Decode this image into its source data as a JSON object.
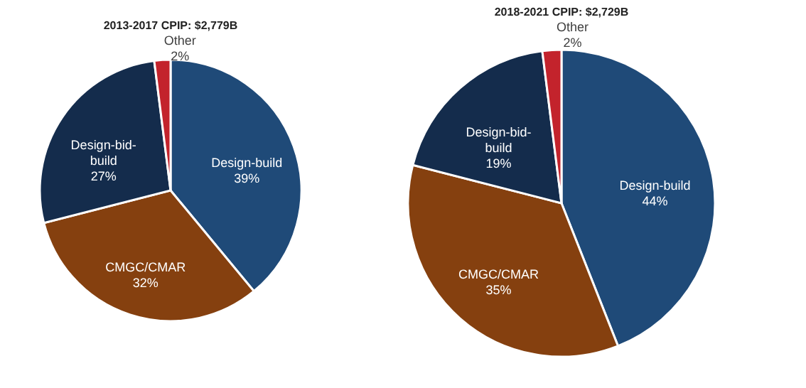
{
  "chart_data": [
    {
      "type": "pie",
      "title": "2013-2017 CPIP: $2,779B",
      "categories": [
        "Design-build",
        "CMGC/CMAR",
        "Design-bid-build",
        "Other"
      ],
      "values": [
        39,
        32,
        27,
        2
      ],
      "colors": [
        "#1f4a78",
        "#85400f",
        "#142c4c",
        "#c3232c"
      ],
      "value_labels": [
        "39%",
        "32%",
        "27%",
        "2%"
      ]
    },
    {
      "type": "pie",
      "title": "2018-2021 CPIP: $2,729B",
      "categories": [
        "Design-build",
        "CMGC/CMAR",
        "Design-bid-build",
        "Other"
      ],
      "values": [
        44,
        35,
        19,
        2
      ],
      "colors": [
        "#1f4a78",
        "#85400f",
        "#142c4c",
        "#c3232c"
      ],
      "value_labels": [
        "44%",
        "35%",
        "19%",
        "2%"
      ]
    }
  ]
}
